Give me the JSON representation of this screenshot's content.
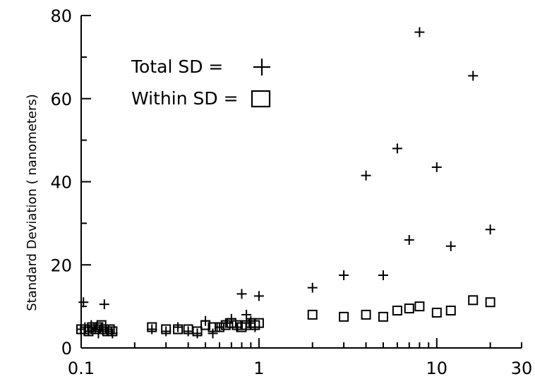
{
  "chart_data": {
    "type": "scatter",
    "title": "",
    "xlabel": "",
    "ylabel": "Standard Deviation ( nanometers)",
    "xscale": "log",
    "xlim": [
      0.1,
      30
    ],
    "ylim": [
      0,
      80
    ],
    "x_tick_labels": [
      "0.1",
      "1",
      "10",
      "30"
    ],
    "x_ticks": [
      0.1,
      1,
      10,
      30
    ],
    "y_tick_labels": [
      "0",
      "20",
      "40",
      "60",
      "80"
    ],
    "y_ticks": [
      0,
      20,
      40,
      60,
      80
    ],
    "grid": false,
    "legend": {
      "placement": "top-left",
      "entries": [
        {
          "label": "Total  SD =",
          "marker": "plus"
        },
        {
          "label": "Within SD =",
          "marker": "square"
        }
      ]
    },
    "series": [
      {
        "name": "Total SD",
        "marker": "plus",
        "x": [
          0.1,
          0.103,
          0.105,
          0.11,
          0.114,
          0.12,
          0.125,
          0.13,
          0.135,
          0.138,
          0.14,
          0.15,
          0.25,
          0.3,
          0.35,
          0.4,
          0.45,
          0.5,
          0.55,
          0.6,
          0.65,
          0.7,
          0.75,
          0.8,
          0.85,
          0.88,
          0.9,
          0.95,
          1.0,
          2,
          3,
          4,
          5,
          6,
          7,
          8,
          10,
          12,
          16,
          20
        ],
        "y": [
          4.5,
          11,
          5,
          4,
          5.5,
          4.5,
          3.5,
          5,
          10.5,
          4.5,
          4,
          3.5,
          4.5,
          4,
          5,
          4,
          3.5,
          6.5,
          3.5,
          5,
          6,
          7,
          5,
          13,
          8,
          6,
          6.5,
          5,
          12.5,
          14.5,
          17.5,
          41.5,
          17.5,
          48,
          26,
          76,
          43.5,
          24.5,
          65.5,
          28.5
        ]
      },
      {
        "name": "Within SD",
        "marker": "square",
        "x": [
          0.1,
          0.105,
          0.11,
          0.115,
          0.12,
          0.125,
          0.13,
          0.135,
          0.14,
          0.145,
          0.15,
          0.25,
          0.3,
          0.35,
          0.4,
          0.45,
          0.5,
          0.55,
          0.6,
          0.65,
          0.7,
          0.75,
          0.8,
          0.85,
          0.9,
          0.95,
          1.0,
          2,
          3,
          4,
          5,
          6,
          7,
          8,
          10,
          12,
          16,
          20
        ],
        "y": [
          4.5,
          4.5,
          4,
          5,
          4.5,
          5,
          5.5,
          4.5,
          4,
          4.5,
          4,
          5,
          4.5,
          4.5,
          4.5,
          4,
          5.5,
          5,
          5,
          5.5,
          6,
          5.5,
          5,
          5.5,
          6,
          5.5,
          6,
          8,
          7.5,
          8,
          7.5,
          9,
          9.5,
          10,
          8.5,
          9,
          11.5,
          11
        ]
      }
    ]
  }
}
